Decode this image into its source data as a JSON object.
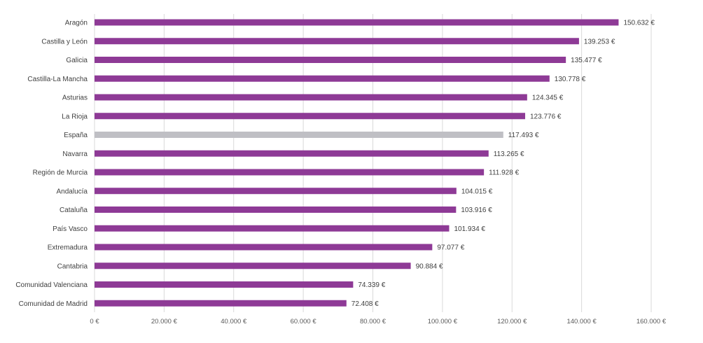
{
  "chart_data": {
    "type": "bar",
    "orientation": "horizontal",
    "title": "",
    "xlabel": "",
    "ylabel": "",
    "xlim": [
      0,
      160000
    ],
    "x_ticks": [
      0,
      20000,
      40000,
      60000,
      80000,
      100000,
      120000,
      140000,
      160000
    ],
    "x_tick_labels": [
      "0 €",
      "20.000 €",
      "40.000 €",
      "60.000 €",
      "80.000 €",
      "100.000 €",
      "120.000 €",
      "140.000 €",
      "160.000 €"
    ],
    "grid": "vertical",
    "legend": "none",
    "bar_color": "#8e3a96",
    "highlight_color": "#bfbfc4",
    "highlight_category": "España",
    "categories": [
      "Aragón",
      "Castilla y León",
      "Galicia",
      "Castilla-La Mancha",
      "Asturias",
      "La Rioja",
      "España",
      "Navarra",
      "Región de Murcia",
      "Andalucía",
      "Cataluña",
      "País Vasco",
      "Extremadura",
      "Cantabria",
      "Comunidad Valenciana",
      "Comunidad de Madrid"
    ],
    "values": [
      150632,
      139253,
      135477,
      130778,
      124345,
      123776,
      117493,
      113265,
      111928,
      104015,
      103916,
      101934,
      97077,
      90884,
      74339,
      72408
    ],
    "value_labels": [
      "150.632 €",
      "139.253 €",
      "135.477 €",
      "130.778 €",
      "124.345 €",
      "123.776 €",
      "117.493 €",
      "113.265 €",
      "111.928 €",
      "104.015 €",
      "103.916 €",
      "101.934 €",
      "97.077 €",
      "90.884 €",
      "74.339 €",
      "72.408 €"
    ]
  }
}
